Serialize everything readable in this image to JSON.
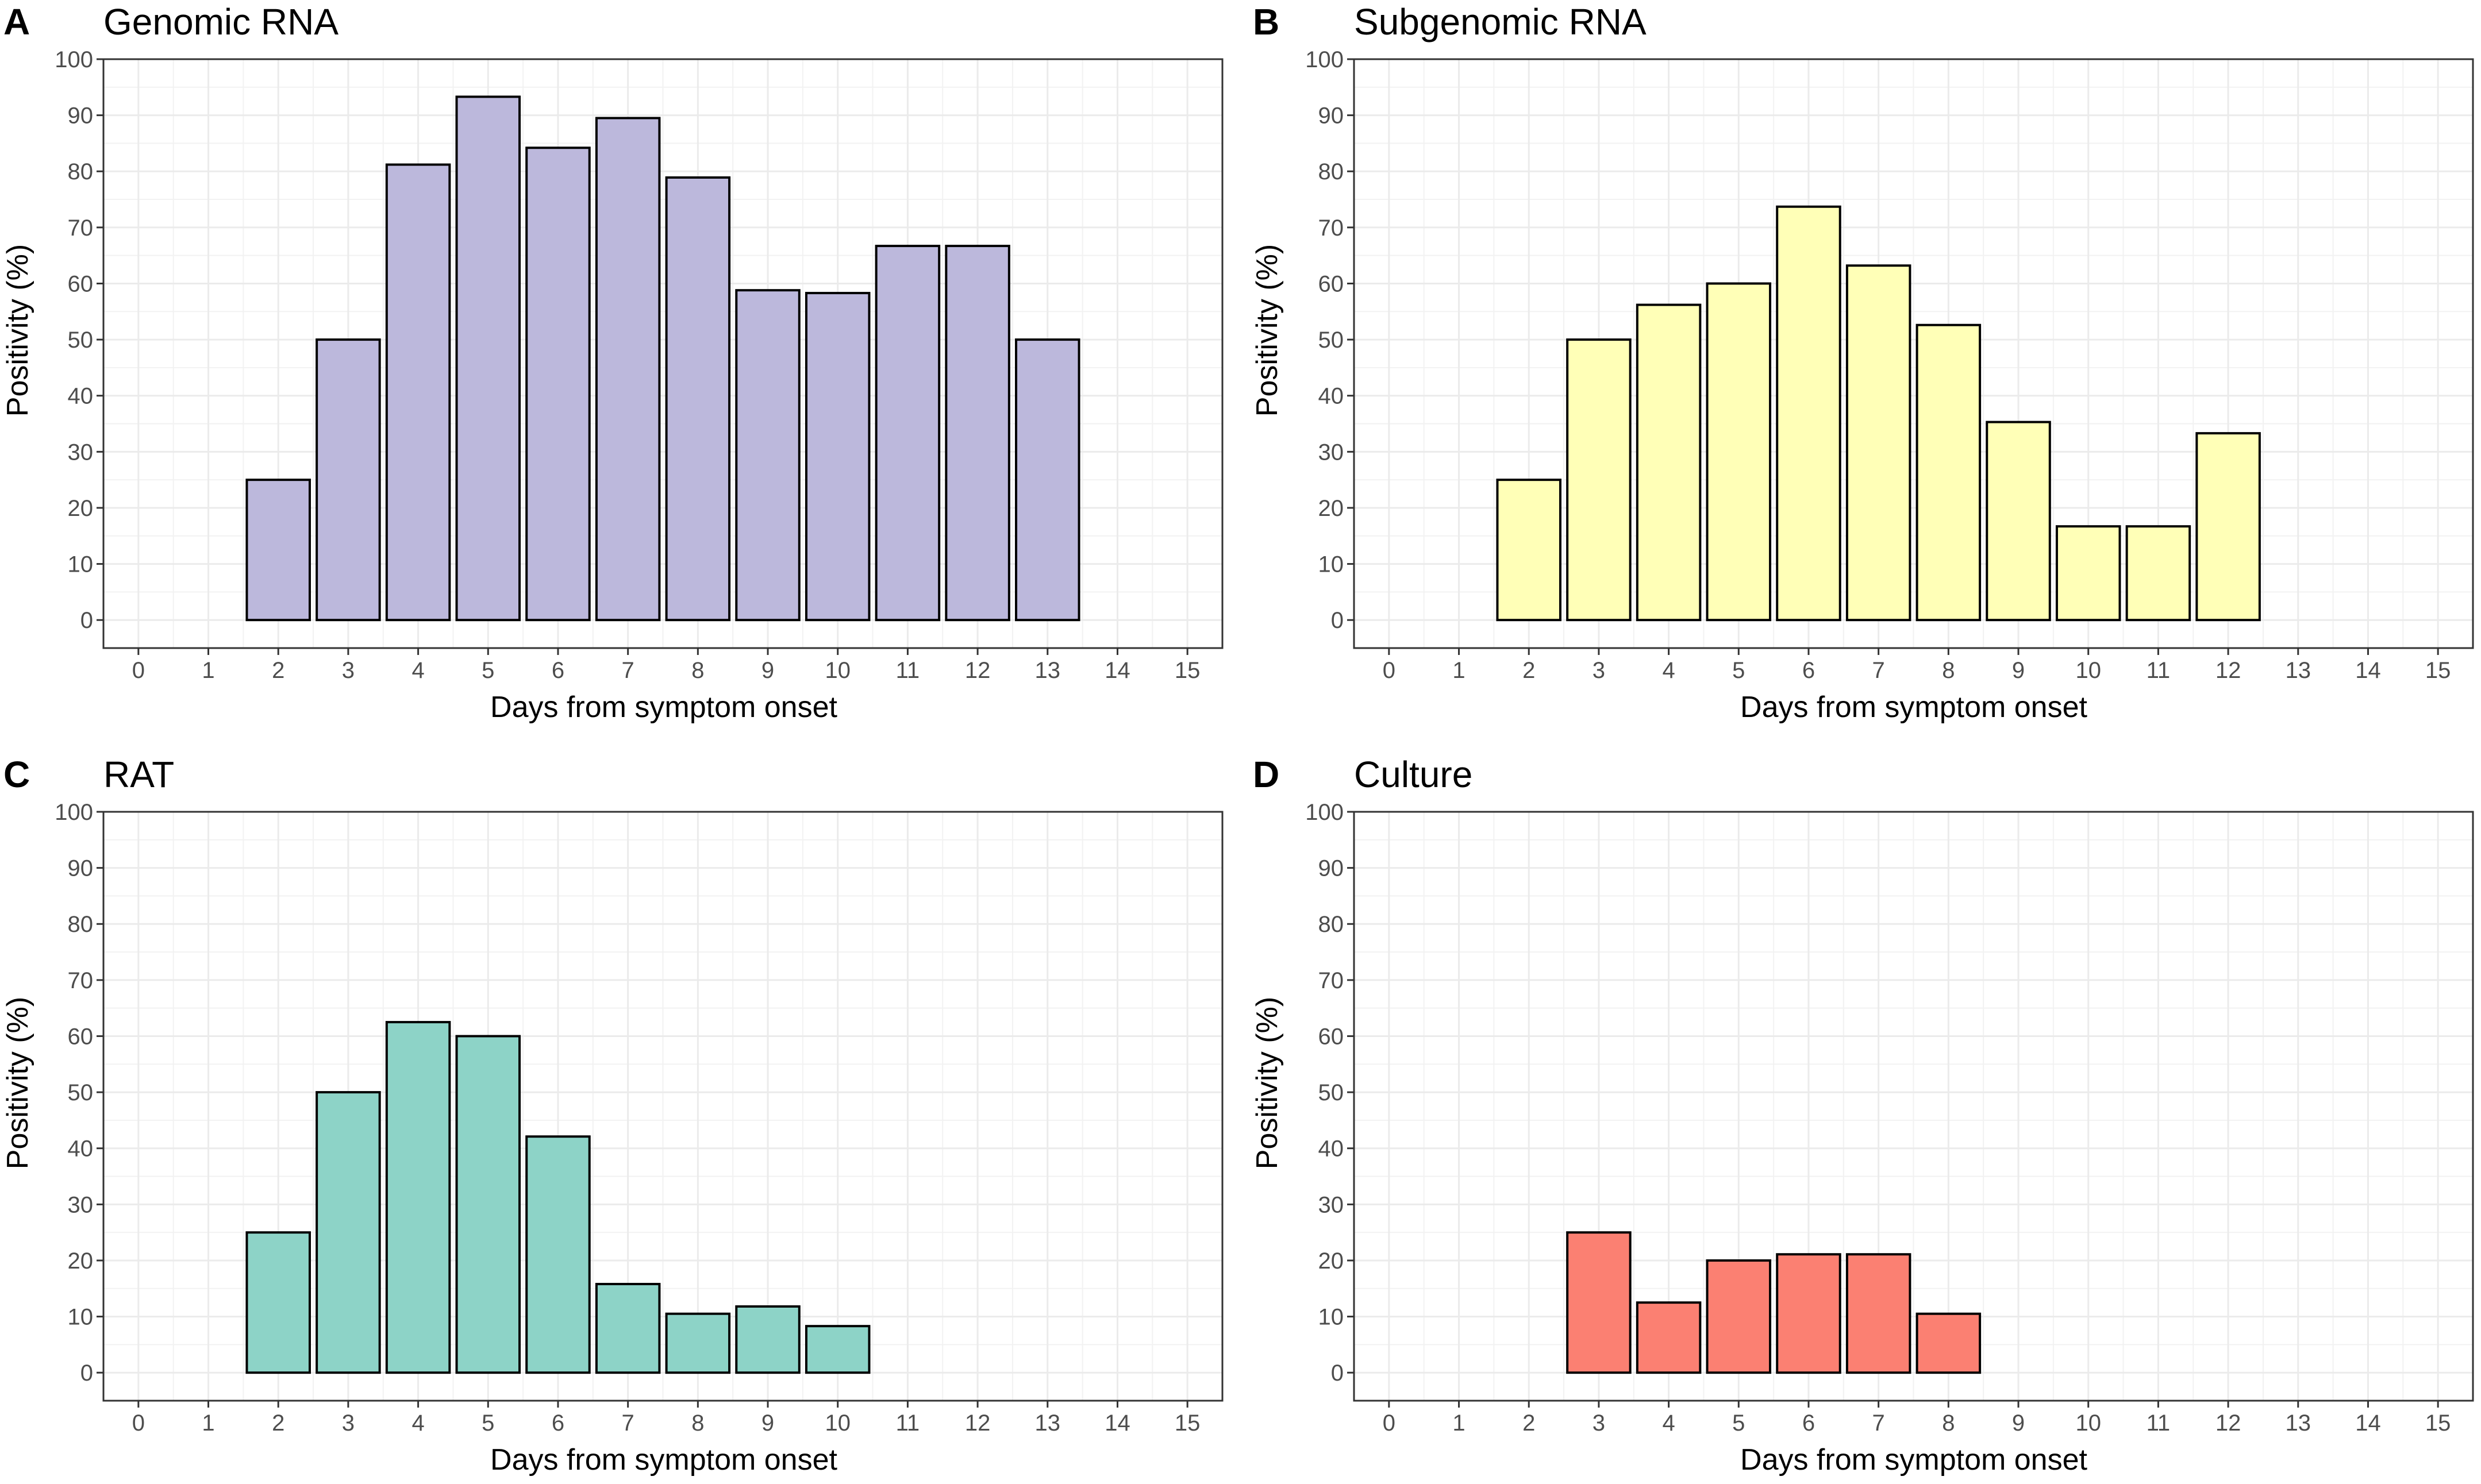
{
  "figure": {
    "panels": [
      {
        "letter": "A",
        "title": "Genomic RNA"
      },
      {
        "letter": "B",
        "title": "Subgenomic RNA"
      },
      {
        "letter": "C",
        "title": "RAT"
      },
      {
        "letter": "D",
        "title": "Culture"
      }
    ]
  },
  "chart_data": [
    {
      "type": "bar",
      "panel": "A",
      "title": "Genomic RNA",
      "xlabel": "Days from symptom onset",
      "ylabel": "Positivity (%)",
      "xlim": [
        0,
        15
      ],
      "ylim": [
        0,
        100
      ],
      "xticks": [
        0,
        1,
        2,
        3,
        4,
        5,
        6,
        7,
        8,
        9,
        10,
        11,
        12,
        13,
        14,
        15
      ],
      "yticks": [
        0,
        10,
        20,
        30,
        40,
        50,
        60,
        70,
        80,
        90,
        100
      ],
      "grid": true,
      "bar_color": "#bcb8dc",
      "x": [
        2,
        3,
        4,
        5,
        6,
        7,
        8,
        9,
        10,
        11,
        12,
        13
      ],
      "values": [
        25,
        50,
        81.2,
        93.3,
        84.2,
        89.5,
        78.9,
        58.8,
        58.3,
        66.7,
        66.7,
        50
      ]
    },
    {
      "type": "bar",
      "panel": "B",
      "title": "Subgenomic RNA",
      "xlabel": "Days from symptom onset",
      "ylabel": "Positivity (%)",
      "xlim": [
        0,
        15
      ],
      "ylim": [
        0,
        100
      ],
      "xticks": [
        0,
        1,
        2,
        3,
        4,
        5,
        6,
        7,
        8,
        9,
        10,
        11,
        12,
        13,
        14,
        15
      ],
      "yticks": [
        0,
        10,
        20,
        30,
        40,
        50,
        60,
        70,
        80,
        90,
        100
      ],
      "grid": true,
      "bar_color": "#ffffb7",
      "x": [
        2,
        3,
        4,
        5,
        6,
        7,
        8,
        9,
        10,
        11,
        12
      ],
      "values": [
        25,
        50,
        56.2,
        60,
        73.7,
        63.2,
        52.6,
        35.3,
        16.7,
        16.7,
        33.3
      ]
    },
    {
      "type": "bar",
      "panel": "C",
      "title": "RAT",
      "xlabel": "Days from symptom onset",
      "ylabel": "Positivity (%)",
      "xlim": [
        0,
        15
      ],
      "ylim": [
        0,
        100
      ],
      "xticks": [
        0,
        1,
        2,
        3,
        4,
        5,
        6,
        7,
        8,
        9,
        10,
        11,
        12,
        13,
        14,
        15
      ],
      "yticks": [
        0,
        10,
        20,
        30,
        40,
        50,
        60,
        70,
        80,
        90,
        100
      ],
      "grid": true,
      "bar_color": "#8dd3c7",
      "x": [
        2,
        3,
        4,
        5,
        6,
        7,
        8,
        9,
        10
      ],
      "values": [
        25,
        50,
        62.5,
        60,
        42.1,
        15.8,
        10.5,
        11.8,
        8.3
      ]
    },
    {
      "type": "bar",
      "panel": "D",
      "title": "Culture",
      "xlabel": "Days from symptom onset",
      "ylabel": "Positivity (%)",
      "xlim": [
        0,
        15
      ],
      "ylim": [
        0,
        100
      ],
      "xticks": [
        0,
        1,
        2,
        3,
        4,
        5,
        6,
        7,
        8,
        9,
        10,
        11,
        12,
        13,
        14,
        15
      ],
      "yticks": [
        0,
        10,
        20,
        30,
        40,
        50,
        60,
        70,
        80,
        90,
        100
      ],
      "grid": true,
      "bar_color": "#fb8072",
      "x": [
        3,
        4,
        5,
        6,
        7,
        8
      ],
      "values": [
        25,
        12.5,
        20,
        21.1,
        21.1,
        10.5
      ]
    }
  ]
}
